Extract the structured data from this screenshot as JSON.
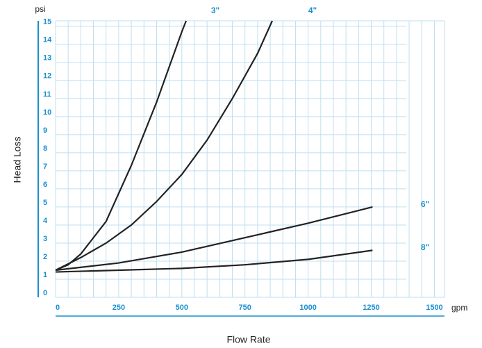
{
  "chart_data": {
    "type": "line",
    "x_label": "Flow Rate",
    "y_label": "Head Loss",
    "x_unit": "gpm",
    "y_unit": "psi",
    "xlim": [
      0,
      1540
    ],
    "ylim": [
      0,
      15.3
    ],
    "xticks": [
      0,
      250,
      500,
      750,
      1000,
      1250,
      1500
    ],
    "yticks": [
      0,
      1,
      2,
      3,
      4,
      5,
      6,
      7,
      8,
      9,
      10,
      11,
      12,
      13,
      14,
      15
    ],
    "grid": true,
    "series": [
      {
        "name": "3\"",
        "color": "#222222",
        "x": [
          0,
          50,
          100,
          200,
          300,
          400,
          500,
          517
        ],
        "values": [
          1.5,
          1.8,
          2.4,
          4.2,
          7.3,
          10.8,
          14.7,
          15.3
        ]
      },
      {
        "name": "4\"",
        "color": "#222222",
        "x": [
          0,
          100,
          200,
          300,
          400,
          500,
          600,
          700,
          800,
          858
        ],
        "values": [
          1.5,
          2.2,
          3.0,
          4.0,
          5.3,
          6.8,
          8.7,
          11.0,
          13.5,
          15.3
        ]
      },
      {
        "name": "6\"",
        "color": "#222222",
        "x": [
          0,
          250,
          500,
          750,
          1000,
          1255
        ],
        "values": [
          1.5,
          1.9,
          2.5,
          3.3,
          4.1,
          5.0
        ]
      },
      {
        "name": "8\"",
        "color": "#222222",
        "x": [
          0,
          250,
          500,
          750,
          1000,
          1255
        ],
        "values": [
          1.4,
          1.5,
          1.6,
          1.8,
          2.1,
          2.6
        ]
      }
    ]
  }
}
